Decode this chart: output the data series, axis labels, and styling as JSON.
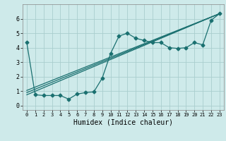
{
  "xlabel": "Humidex (Indice chaleur)",
  "xlim": [
    -0.5,
    23.5
  ],
  "ylim": [
    -0.3,
    7.0
  ],
  "yticks": [
    0,
    1,
    2,
    3,
    4,
    5,
    6
  ],
  "xticks": [
    0,
    1,
    2,
    3,
    4,
    5,
    6,
    7,
    8,
    9,
    10,
    11,
    12,
    13,
    14,
    15,
    16,
    17,
    18,
    19,
    20,
    21,
    22,
    23
  ],
  "bg_color": "#ceeaea",
  "grid_color": "#aacece",
  "line_color": "#1a7070",
  "marker_style": "D",
  "marker_size": 2.5,
  "wiggly_x": [
    0,
    1,
    2,
    3,
    4,
    5,
    6,
    7,
    8,
    9,
    10,
    11,
    12,
    13,
    14,
    15,
    16,
    17,
    18,
    19,
    20,
    21,
    22,
    23
  ],
  "wiggly_y": [
    4.35,
    0.75,
    0.7,
    0.7,
    0.7,
    0.45,
    0.8,
    0.9,
    0.95,
    1.9,
    3.6,
    4.8,
    5.0,
    4.65,
    4.5,
    4.35,
    4.35,
    4.0,
    3.95,
    4.0,
    4.35,
    4.2,
    5.9,
    6.35
  ],
  "line1_x": [
    0,
    23
  ],
  "line1_y": [
    0.75,
    6.35
  ],
  "line2_x": [
    0,
    23
  ],
  "line2_y": [
    0.9,
    6.35
  ],
  "line3_x": [
    0,
    23
  ],
  "line3_y": [
    1.05,
    6.35
  ]
}
